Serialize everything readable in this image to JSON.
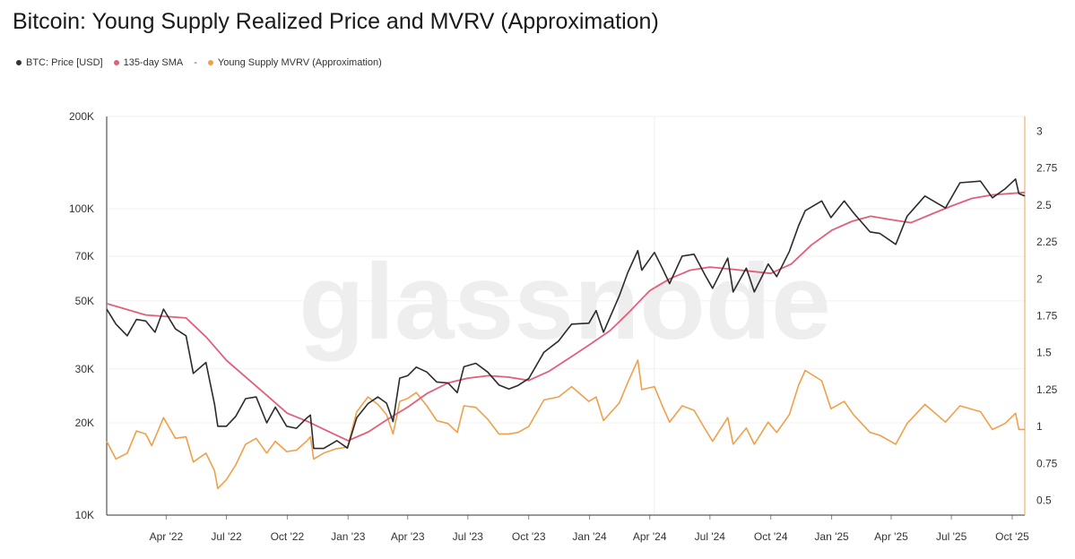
{
  "title": "Bitcoin: Young Supply Realized Price and MVRV (Approximation)",
  "watermark": "glassnode",
  "legend": [
    {
      "label": "BTC: Price [USD]",
      "color": "#333333"
    },
    {
      "label": "135-day SMA",
      "color": "#e0607a"
    },
    {
      "label": "-",
      "color": ""
    },
    {
      "label": "Young Supply MVRV (Approximation)",
      "color": "#f0a04b"
    }
  ],
  "chart_data": {
    "type": "line",
    "x_axis": {
      "start": "2022-01-01",
      "end": "2025-10-20",
      "tick_labels": [
        "Apr '22",
        "Jul '22",
        "Oct '22",
        "Jan '23",
        "Apr '23",
        "Jul '23",
        "Oct '23",
        "Jan '24",
        "Apr '24",
        "Jul '24",
        "Oct '24",
        "Jan '25",
        "Apr '25",
        "Jul '25",
        "Oct '25"
      ],
      "tick_dates": [
        "2022-04-01",
        "2022-07-01",
        "2022-10-01",
        "2023-01-01",
        "2023-04-01",
        "2023-07-01",
        "2023-10-01",
        "2024-01-01",
        "2024-04-01",
        "2024-07-01",
        "2024-10-01",
        "2025-01-01",
        "2025-04-01",
        "2025-07-01",
        "2025-10-01"
      ]
    },
    "y_left": {
      "scale": "log",
      "range": [
        10000,
        200000
      ],
      "tick_labels": [
        "10K",
        "20K",
        "30K",
        "50K",
        "70K",
        "100K",
        "200K"
      ],
      "tick_values": [
        10000,
        20000,
        30000,
        50000,
        70000,
        100000,
        200000
      ]
    },
    "y_right": {
      "scale": "linear",
      "range": [
        0.4,
        3.1
      ],
      "tick_labels": [
        "0.5",
        "0.75",
        "1",
        "1.25",
        "1.5",
        "1.75",
        "2",
        "2.25",
        "2.5",
        "2.75",
        "3"
      ],
      "tick_values": [
        0.5,
        0.75,
        1,
        1.25,
        1.5,
        1.75,
        2,
        2.25,
        2.5,
        2.75,
        3
      ]
    },
    "grid": true,
    "series": [
      {
        "name": "BTC: Price [USD]",
        "color": "#2b2b2b",
        "axis": "left",
        "points": [
          [
            "2022-01-01",
            47000
          ],
          [
            "2022-01-15",
            42000
          ],
          [
            "2022-02-01",
            38500
          ],
          [
            "2022-02-15",
            43500
          ],
          [
            "2022-03-01",
            43000
          ],
          [
            "2022-03-15",
            39500
          ],
          [
            "2022-03-28",
            47000
          ],
          [
            "2022-04-15",
            40500
          ],
          [
            "2022-05-01",
            38500
          ],
          [
            "2022-05-12",
            29000
          ],
          [
            "2022-05-31",
            31500
          ],
          [
            "2022-06-13",
            23000
          ],
          [
            "2022-06-18",
            19500
          ],
          [
            "2022-07-01",
            19500
          ],
          [
            "2022-07-15",
            21000
          ],
          [
            "2022-07-30",
            24000
          ],
          [
            "2022-08-15",
            24300
          ],
          [
            "2022-08-31",
            20000
          ],
          [
            "2022-09-13",
            22500
          ],
          [
            "2022-09-30",
            19500
          ],
          [
            "2022-10-15",
            19200
          ],
          [
            "2022-10-30",
            20700
          ],
          [
            "2022-11-05",
            21200
          ],
          [
            "2022-11-10",
            16500
          ],
          [
            "2022-11-25",
            16500
          ],
          [
            "2022-12-15",
            17500
          ],
          [
            "2022-12-31",
            16550
          ],
          [
            "2023-01-14",
            20800
          ],
          [
            "2023-01-31",
            23100
          ],
          [
            "2023-02-15",
            24300
          ],
          [
            "2023-02-28",
            23200
          ],
          [
            "2023-03-10",
            20200
          ],
          [
            "2023-03-20",
            28000
          ],
          [
            "2023-04-01",
            28500
          ],
          [
            "2023-04-14",
            30400
          ],
          [
            "2023-04-30",
            29300
          ],
          [
            "2023-05-15",
            27200
          ],
          [
            "2023-06-01",
            27000
          ],
          [
            "2023-06-15",
            25100
          ],
          [
            "2023-06-25",
            30500
          ],
          [
            "2023-07-13",
            31300
          ],
          [
            "2023-07-31",
            29300
          ],
          [
            "2023-08-17",
            26600
          ],
          [
            "2023-09-01",
            25800
          ],
          [
            "2023-09-15",
            26500
          ],
          [
            "2023-10-01",
            27900
          ],
          [
            "2023-10-24",
            34000
          ],
          [
            "2023-11-15",
            37000
          ],
          [
            "2023-12-05",
            42000
          ],
          [
            "2023-12-31",
            42300
          ],
          [
            "2024-01-11",
            46500
          ],
          [
            "2024-01-22",
            39500
          ],
          [
            "2024-02-15",
            52000
          ],
          [
            "2024-02-28",
            62000
          ],
          [
            "2024-03-14",
            73000
          ],
          [
            "2024-03-20",
            63000
          ],
          [
            "2024-04-08",
            72000
          ],
          [
            "2024-04-20",
            64000
          ],
          [
            "2024-05-01",
            57000
          ],
          [
            "2024-05-20",
            70000
          ],
          [
            "2024-06-07",
            71000
          ],
          [
            "2024-06-24",
            60500
          ],
          [
            "2024-07-05",
            55000
          ],
          [
            "2024-07-28",
            69000
          ],
          [
            "2024-08-05",
            53500
          ],
          [
            "2024-08-25",
            64000
          ],
          [
            "2024-09-06",
            53500
          ],
          [
            "2024-09-27",
            66000
          ],
          [
            "2024-10-10",
            60000
          ],
          [
            "2024-10-29",
            72500
          ],
          [
            "2024-11-12",
            88000
          ],
          [
            "2024-11-22",
            98500
          ],
          [
            "2024-12-17",
            106000
          ],
          [
            "2024-12-31",
            93500
          ],
          [
            "2025-01-20",
            106000
          ],
          [
            "2025-02-03",
            97000
          ],
          [
            "2025-02-28",
            84000
          ],
          [
            "2025-03-15",
            83000
          ],
          [
            "2025-04-08",
            76500
          ],
          [
            "2025-04-25",
            94500
          ],
          [
            "2025-05-22",
            110000
          ],
          [
            "2025-06-22",
            100500
          ],
          [
            "2025-07-14",
            121500
          ],
          [
            "2025-08-14",
            123000
          ],
          [
            "2025-09-01",
            108500
          ],
          [
            "2025-09-20",
            116000
          ],
          [
            "2025-10-06",
            125000
          ],
          [
            "2025-10-11",
            112000
          ],
          [
            "2025-10-20",
            110000
          ]
        ]
      },
      {
        "name": "135-day SMA",
        "color": "#e0607a",
        "axis": "left",
        "points": [
          [
            "2022-01-01",
            49000
          ],
          [
            "2022-03-01",
            45000
          ],
          [
            "2022-05-01",
            44000
          ],
          [
            "2022-06-01",
            38000
          ],
          [
            "2022-07-01",
            32000
          ],
          [
            "2022-08-01",
            28000
          ],
          [
            "2022-09-01",
            24500
          ],
          [
            "2022-10-01",
            21500
          ],
          [
            "2022-11-01",
            20200
          ],
          [
            "2022-12-01",
            18800
          ],
          [
            "2023-01-01",
            17500
          ],
          [
            "2023-02-01",
            18700
          ],
          [
            "2023-03-01",
            20500
          ],
          [
            "2023-04-01",
            22500
          ],
          [
            "2023-05-01",
            25000
          ],
          [
            "2023-06-01",
            27000
          ],
          [
            "2023-07-01",
            28000
          ],
          [
            "2023-08-01",
            28500
          ],
          [
            "2023-09-01",
            28200
          ],
          [
            "2023-10-01",
            27500
          ],
          [
            "2023-11-01",
            29500
          ],
          [
            "2023-12-01",
            32500
          ],
          [
            "2024-01-01",
            36000
          ],
          [
            "2024-02-01",
            40000
          ],
          [
            "2024-03-01",
            46000
          ],
          [
            "2024-04-01",
            54000
          ],
          [
            "2024-05-01",
            59000
          ],
          [
            "2024-06-01",
            63000
          ],
          [
            "2024-07-01",
            64500
          ],
          [
            "2024-08-01",
            63500
          ],
          [
            "2024-09-01",
            62500
          ],
          [
            "2024-10-01",
            61500
          ],
          [
            "2024-11-01",
            66000
          ],
          [
            "2024-12-01",
            76000
          ],
          [
            "2025-01-01",
            85000
          ],
          [
            "2025-02-01",
            91000
          ],
          [
            "2025-03-01",
            94500
          ],
          [
            "2025-04-01",
            92000
          ],
          [
            "2025-05-01",
            90000
          ],
          [
            "2025-06-01",
            96000
          ],
          [
            "2025-07-01",
            102000
          ],
          [
            "2025-08-01",
            108000
          ],
          [
            "2025-09-01",
            111000
          ],
          [
            "2025-10-20",
            113000
          ]
        ]
      },
      {
        "name": "Young Supply MVRV (Approximation)",
        "color": "#f0a04b",
        "axis": "right",
        "points": [
          [
            "2022-01-01",
            0.9
          ],
          [
            "2022-01-15",
            0.78
          ],
          [
            "2022-02-01",
            0.82
          ],
          [
            "2022-02-15",
            0.97
          ],
          [
            "2022-03-01",
            0.95
          ],
          [
            "2022-03-10",
            0.87
          ],
          [
            "2022-03-28",
            1.06
          ],
          [
            "2022-04-15",
            0.92
          ],
          [
            "2022-05-01",
            0.93
          ],
          [
            "2022-05-12",
            0.76
          ],
          [
            "2022-05-31",
            0.82
          ],
          [
            "2022-06-13",
            0.7
          ],
          [
            "2022-06-18",
            0.58
          ],
          [
            "2022-07-01",
            0.64
          ],
          [
            "2022-07-15",
            0.74
          ],
          [
            "2022-07-30",
            0.88
          ],
          [
            "2022-08-15",
            0.92
          ],
          [
            "2022-08-31",
            0.82
          ],
          [
            "2022-09-13",
            0.9
          ],
          [
            "2022-09-30",
            0.83
          ],
          [
            "2022-10-15",
            0.84
          ],
          [
            "2022-10-30",
            0.9
          ],
          [
            "2022-11-05",
            0.93
          ],
          [
            "2022-11-10",
            0.78
          ],
          [
            "2022-11-25",
            0.82
          ],
          [
            "2022-12-15",
            0.85
          ],
          [
            "2022-12-31",
            0.86
          ],
          [
            "2023-01-14",
            1.1
          ],
          [
            "2023-01-31",
            1.2
          ],
          [
            "2023-02-15",
            1.15
          ],
          [
            "2023-02-28",
            1.08
          ],
          [
            "2023-03-10",
            0.95
          ],
          [
            "2023-03-20",
            1.17
          ],
          [
            "2023-04-01",
            1.19
          ],
          [
            "2023-04-14",
            1.23
          ],
          [
            "2023-04-30",
            1.14
          ],
          [
            "2023-05-15",
            1.04
          ],
          [
            "2023-06-01",
            1.02
          ],
          [
            "2023-06-15",
            0.96
          ],
          [
            "2023-06-25",
            1.14
          ],
          [
            "2023-07-13",
            1.13
          ],
          [
            "2023-07-31",
            1.05
          ],
          [
            "2023-08-17",
            0.95
          ],
          [
            "2023-09-01",
            0.95
          ],
          [
            "2023-09-15",
            0.96
          ],
          [
            "2023-10-01",
            1.0
          ],
          [
            "2023-10-24",
            1.18
          ],
          [
            "2023-11-15",
            1.2
          ],
          [
            "2023-12-05",
            1.27
          ],
          [
            "2023-12-31",
            1.17
          ],
          [
            "2024-01-11",
            1.2
          ],
          [
            "2024-01-22",
            1.04
          ],
          [
            "2024-02-15",
            1.16
          ],
          [
            "2024-02-28",
            1.3
          ],
          [
            "2024-03-14",
            1.45
          ],
          [
            "2024-03-20",
            1.25
          ],
          [
            "2024-04-08",
            1.27
          ],
          [
            "2024-04-20",
            1.14
          ],
          [
            "2024-05-01",
            1.03
          ],
          [
            "2024-05-20",
            1.14
          ],
          [
            "2024-06-07",
            1.11
          ],
          [
            "2024-06-24",
            0.98
          ],
          [
            "2024-07-05",
            0.9
          ],
          [
            "2024-07-28",
            1.06
          ],
          [
            "2024-08-05",
            0.88
          ],
          [
            "2024-08-25",
            0.99
          ],
          [
            "2024-09-06",
            0.88
          ],
          [
            "2024-09-27",
            1.03
          ],
          [
            "2024-10-10",
            0.96
          ],
          [
            "2024-10-29",
            1.08
          ],
          [
            "2024-11-12",
            1.28
          ],
          [
            "2024-11-22",
            1.38
          ],
          [
            "2024-12-17",
            1.31
          ],
          [
            "2024-12-31",
            1.12
          ],
          [
            "2025-01-20",
            1.17
          ],
          [
            "2025-02-03",
            1.08
          ],
          [
            "2025-02-28",
            0.96
          ],
          [
            "2025-03-15",
            0.94
          ],
          [
            "2025-04-08",
            0.88
          ],
          [
            "2025-04-25",
            1.02
          ],
          [
            "2025-05-22",
            1.15
          ],
          [
            "2025-06-22",
            1.03
          ],
          [
            "2025-07-14",
            1.14
          ],
          [
            "2025-08-14",
            1.1
          ],
          [
            "2025-09-01",
            0.98
          ],
          [
            "2025-09-20",
            1.02
          ],
          [
            "2025-10-06",
            1.09
          ],
          [
            "2025-10-11",
            0.98
          ],
          [
            "2025-10-20",
            0.98
          ]
        ]
      }
    ]
  }
}
